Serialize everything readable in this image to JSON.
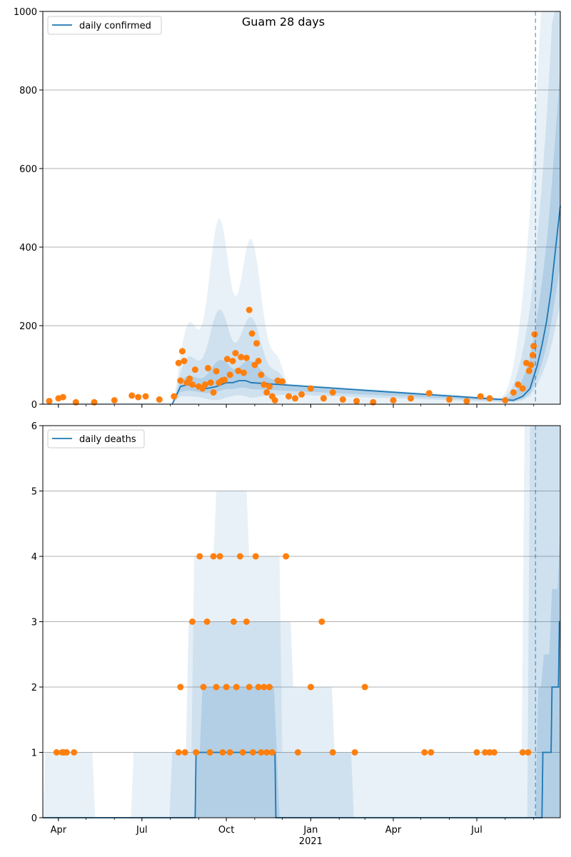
{
  "figure": {
    "title": "Guam 28 days"
  },
  "colors": {
    "line": "#1f77b4",
    "band": "#1f77b4",
    "points": "#ff7f0e",
    "grid": "#b0b0b0",
    "vline": "#1f77b4"
  },
  "chart_data": [
    {
      "type": "line",
      "panel": "top",
      "title": "Guam 28 days",
      "legend": {
        "label": "daily confirmed",
        "placement": "upper-left"
      },
      "x_axis": {
        "type": "date",
        "range": [
          "2020-03-15",
          "2021-09-30"
        ],
        "shared_with_bottom": true
      },
      "y_axis": {
        "range": [
          0,
          1000
        ],
        "ticks": [
          "0",
          "200",
          "400",
          "600",
          "800",
          "1000"
        ]
      },
      "grid": "horizontal",
      "forecast_start": "2021-09-03",
      "series": [
        {
          "kind": "model-line",
          "x": [
            "2020-08-03",
            "2020-08-12",
            "2020-08-20",
            "2020-09-01",
            "2020-09-10",
            "2020-09-20",
            "2020-10-01",
            "2020-10-08",
            "2020-10-15",
            "2020-10-22",
            "2020-10-28",
            "2021-08-10",
            "2021-08-20",
            "2021-08-28",
            "2021-09-05",
            "2021-09-10",
            "2021-09-15",
            "2021-09-20",
            "2021-09-25",
            "2021-09-30"
          ],
          "y": [
            0,
            45,
            50,
            45,
            40,
            45,
            55,
            55,
            60,
            60,
            55,
            10,
            20,
            40,
            100,
            150,
            210,
            290,
            400,
            505
          ]
        },
        {
          "kind": "observed-points",
          "x": [
            "2020-03-22",
            "2020-04-01",
            "2020-04-06",
            "2020-04-20",
            "2020-05-10",
            "2020-06-01",
            "2020-06-20",
            "2020-06-27",
            "2020-07-05",
            "2020-07-20",
            "2020-08-05",
            "2020-08-10",
            "2020-08-12",
            "2020-08-14",
            "2020-08-16",
            "2020-08-19",
            "2020-08-22",
            "2020-08-25",
            "2020-08-28",
            "2020-09-01",
            "2020-09-05",
            "2020-09-08",
            "2020-09-11",
            "2020-09-14",
            "2020-09-17",
            "2020-09-20",
            "2020-09-23",
            "2020-09-26",
            "2020-09-29",
            "2020-10-02",
            "2020-10-05",
            "2020-10-08",
            "2020-10-11",
            "2020-10-14",
            "2020-10-17",
            "2020-10-20",
            "2020-10-23",
            "2020-10-26",
            "2020-10-29",
            "2020-11-01",
            "2020-11-03",
            "2020-11-05",
            "2020-11-08",
            "2020-11-11",
            "2020-11-14",
            "2020-11-17",
            "2020-11-20",
            "2020-11-23",
            "2020-11-26",
            "2020-12-01",
            "2020-12-08",
            "2020-12-15",
            "2020-12-22",
            "2021-01-01",
            "2021-01-15",
            "2021-01-25",
            "2021-02-05",
            "2021-02-20",
            "2021-03-10",
            "2021-04-01",
            "2021-04-20",
            "2021-05-10",
            "2021-06-01",
            "2021-06-20",
            "2021-07-05",
            "2021-07-15",
            "2021-08-01",
            "2021-08-10",
            "2021-08-15",
            "2021-08-20",
            "2021-08-24",
            "2021-08-27",
            "2021-08-29",
            "2021-08-31",
            "2021-09-01",
            "2021-09-02"
          ],
          "y": [
            8,
            15,
            18,
            5,
            5,
            10,
            22,
            18,
            20,
            12,
            20,
            105,
            60,
            135,
            110,
            55,
            65,
            50,
            88,
            45,
            40,
            50,
            92,
            55,
            30,
            84,
            55,
            60,
            62,
            115,
            75,
            110,
            130,
            85,
            120,
            80,
            118,
            240,
            180,
            100,
            155,
            110,
            75,
            50,
            30,
            45,
            20,
            10,
            60,
            58,
            20,
            15,
            25,
            40,
            15,
            30,
            12,
            8,
            5,
            10,
            15,
            28,
            12,
            8,
            20,
            15,
            10,
            30,
            50,
            40,
            105,
            85,
            100,
            125,
            148,
            178
          ]
        }
      ]
    },
    {
      "type": "line",
      "panel": "bottom",
      "legend": {
        "label": "daily deaths",
        "placement": "upper-left"
      },
      "x_axis": {
        "type": "date",
        "range": [
          "2020-03-15",
          "2021-09-30"
        ],
        "ticks": [
          {
            "date": "2020-04-01",
            "label": "Apr"
          },
          {
            "date": "2020-07-01",
            "label": "Jul"
          },
          {
            "date": "2020-10-01",
            "label": "Oct"
          },
          {
            "date": "2021-01-01",
            "label": "Jan",
            "sublabel": "2021"
          },
          {
            "date": "2021-04-01",
            "label": "Apr"
          },
          {
            "date": "2021-07-01",
            "label": "Jul"
          }
        ]
      },
      "y_axis": {
        "range": [
          0,
          6
        ],
        "ticks": [
          "0",
          "1",
          "2",
          "3",
          "4",
          "5",
          "6"
        ]
      },
      "grid": "horizontal",
      "forecast_start": "2021-09-03",
      "series": [
        {
          "kind": "model-line",
          "x": [
            "2020-03-15",
            "2020-08-28",
            "2020-08-29",
            "2020-11-23",
            "2020-11-24",
            "2021-09-03",
            "2021-09-10",
            "2021-09-11",
            "2021-09-20",
            "2021-09-21",
            "2021-09-28",
            "2021-09-29",
            "2021-09-30"
          ],
          "y": [
            0,
            0,
            1,
            1,
            0,
            0,
            0,
            1,
            1,
            2,
            2,
            3,
            3
          ]
        },
        {
          "kind": "observed-points",
          "x": [
            "2020-03-30",
            "2020-04-05",
            "2020-04-07",
            "2020-04-10",
            "2020-04-18",
            "2020-08-10",
            "2020-08-12",
            "2020-08-17",
            "2020-08-25",
            "2020-08-29",
            "2020-09-02",
            "2020-09-06",
            "2020-09-10",
            "2020-09-13",
            "2020-09-17",
            "2020-09-20",
            "2020-09-24",
            "2020-09-27",
            "2020-10-01",
            "2020-10-05",
            "2020-10-09",
            "2020-10-12",
            "2020-10-16",
            "2020-10-19",
            "2020-10-23",
            "2020-10-26",
            "2020-10-30",
            "2020-11-02",
            "2020-11-05",
            "2020-11-08",
            "2020-11-11",
            "2020-11-14",
            "2020-11-17",
            "2020-11-20",
            "2020-12-05",
            "2020-12-18",
            "2021-01-01",
            "2021-01-13",
            "2021-01-25",
            "2021-02-18",
            "2021-03-01",
            "2021-05-05",
            "2021-05-12",
            "2021-07-01",
            "2021-07-10",
            "2021-07-15",
            "2021-07-20",
            "2021-08-20",
            "2021-08-26"
          ],
          "y": [
            1,
            1,
            1,
            1,
            1,
            1,
            2,
            1,
            3,
            1,
            4,
            2,
            3,
            1,
            4,
            2,
            4,
            1,
            2,
            1,
            3,
            2,
            4,
            1,
            3,
            2,
            1,
            4,
            2,
            1,
            2,
            1,
            2,
            1,
            4,
            1,
            2,
            3,
            1,
            1,
            2,
            1,
            1,
            1,
            1,
            1,
            1,
            1,
            1
          ]
        }
      ]
    }
  ]
}
